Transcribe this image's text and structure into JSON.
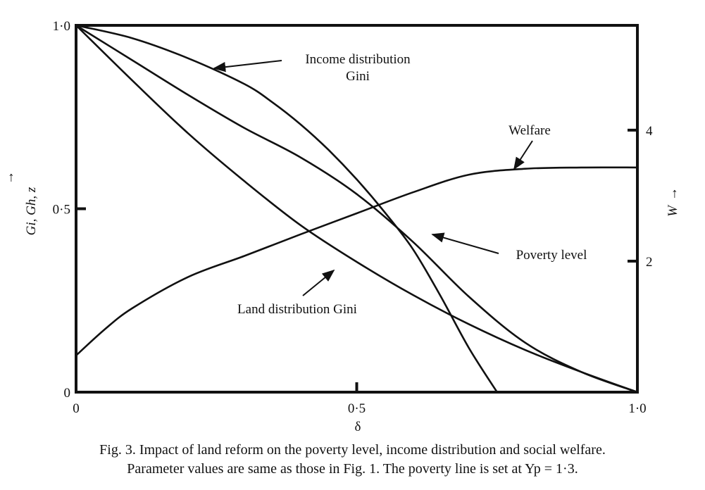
{
  "chart_data": {
    "type": "line",
    "xlabel": "δ",
    "ylabel_left": "Gi, Gh, z",
    "ylabel_right": "W",
    "xlim": [
      0,
      1
    ],
    "ylim_left": [
      0,
      1
    ],
    "ylim_right": [
      0,
      5.6
    ],
    "x_ticks": [
      {
        "value": 0,
        "label": "0"
      },
      {
        "value": 0.5,
        "label": "0·5"
      },
      {
        "value": 1,
        "label": "1·0"
      }
    ],
    "y_ticks_left": [
      {
        "value": 0,
        "label": "0"
      },
      {
        "value": 0.5,
        "label": "0·5"
      },
      {
        "value": 1,
        "label": "1·0"
      }
    ],
    "y_ticks_right": [
      {
        "value": 2,
        "label": "2"
      },
      {
        "value": 4,
        "label": "4"
      }
    ],
    "grid": false,
    "series": [
      {
        "name": "Income distribution Gini",
        "x": [
          0,
          0.1,
          0.2,
          0.3,
          0.4,
          0.5,
          0.6,
          0.7,
          0.8,
          0.9,
          1.0
        ],
        "y": [
          1.0,
          0.905,
          0.81,
          0.72,
          0.64,
          0.54,
          0.41,
          0.26,
          0.135,
          0.055,
          0.0
        ]
      },
      {
        "name": "Poverty level",
        "x": [
          0,
          0.1,
          0.2,
          0.3,
          0.35,
          0.4,
          0.45,
          0.5,
          0.55,
          0.6,
          0.65,
          0.7,
          0.75
        ],
        "y": [
          1.0,
          0.965,
          0.91,
          0.84,
          0.79,
          0.73,
          0.66,
          0.58,
          0.49,
          0.39,
          0.26,
          0.12,
          0.0
        ]
      },
      {
        "name": "Land distribution Gini",
        "x": [
          0,
          0.1,
          0.2,
          0.3,
          0.4,
          0.5,
          0.6,
          0.7,
          0.8,
          0.9,
          1.0
        ],
        "y": [
          1.0,
          0.85,
          0.705,
          0.575,
          0.455,
          0.355,
          0.265,
          0.185,
          0.115,
          0.055,
          0.0
        ]
      },
      {
        "name": "Welfare",
        "axis": "right",
        "x": [
          0,
          0.05,
          0.1,
          0.2,
          0.3,
          0.4,
          0.5,
          0.6,
          0.7,
          0.8,
          0.9,
          1.0
        ],
        "y": [
          0.56,
          0.95,
          1.28,
          1.76,
          2.08,
          2.41,
          2.73,
          3.05,
          3.32,
          3.41,
          3.43,
          3.43
        ]
      }
    ],
    "annotations": [
      {
        "text_lines": [
          "Income distribution",
          "Gini"
        ],
        "series": "Income distribution Gini"
      },
      {
        "text_lines": [
          "Welfare"
        ],
        "series": "Welfare"
      },
      {
        "text_lines": [
          "Poverty level"
        ],
        "series": "Poverty level"
      },
      {
        "text_lines": [
          "Land distribution Gini"
        ],
        "series": "Land distribution Gini"
      }
    ]
  },
  "caption": {
    "line1": "Fig. 3. Impact of land reform on the poverty level, income distribution and social welfare.",
    "line2": "Parameter values are same as those in Fig. 1. The poverty line is set at Yp = 1·3."
  }
}
